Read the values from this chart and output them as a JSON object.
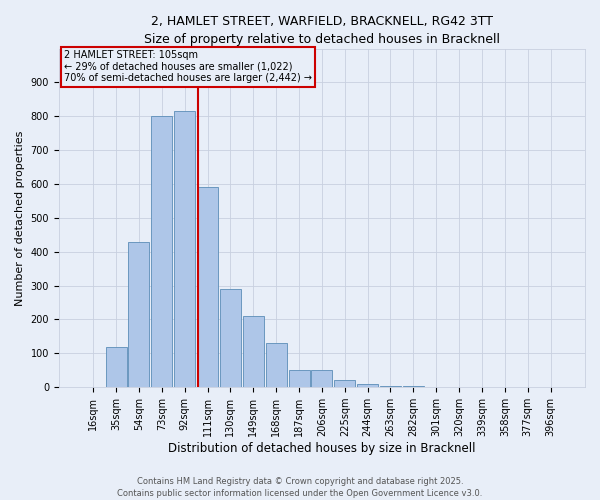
{
  "title_line1": "2, HAMLET STREET, WARFIELD, BRACKNELL, RG42 3TT",
  "title_line2": "Size of property relative to detached houses in Bracknell",
  "xlabel": "Distribution of detached houses by size in Bracknell",
  "ylabel": "Number of detached properties",
  "bar_labels": [
    "16sqm",
    "35sqm",
    "54sqm",
    "73sqm",
    "92sqm",
    "111sqm",
    "130sqm",
    "149sqm",
    "168sqm",
    "187sqm",
    "206sqm",
    "225sqm",
    "244sqm",
    "263sqm",
    "282sqm",
    "301sqm",
    "320sqm",
    "339sqm",
    "358sqm",
    "377sqm",
    "396sqm"
  ],
  "bar_values": [
    0,
    120,
    430,
    800,
    815,
    590,
    290,
    210,
    130,
    50,
    50,
    20,
    10,
    5,
    3,
    2,
    1,
    1,
    0,
    0,
    0
  ],
  "bar_color": "#aec6e8",
  "bar_edge_color": "#5b8db8",
  "vline_x_index": 4.575,
  "vline_color": "#cc0000",
  "annotation_box_color": "#cc0000",
  "annotation_title": "2 HAMLET STREET: 105sqm",
  "annotation_line2": "← 29% of detached houses are smaller (1,022)",
  "annotation_line3": "70% of semi-detached houses are larger (2,442) →",
  "ylim": [
    0,
    1000
  ],
  "yticks": [
    0,
    100,
    200,
    300,
    400,
    500,
    600,
    700,
    800,
    900
  ],
  "background_color": "#e8eef8",
  "footer_line1": "Contains HM Land Registry data © Crown copyright and database right 2025.",
  "footer_line2": "Contains public sector information licensed under the Open Government Licence v3.0.",
  "grid_color": "#c8d0e0",
  "title_fontsize": 9,
  "subtitle_fontsize": 8.5,
  "ylabel_fontsize": 8,
  "xlabel_fontsize": 8.5,
  "tick_fontsize": 7,
  "annot_fontsize": 7,
  "footer_fontsize": 6
}
